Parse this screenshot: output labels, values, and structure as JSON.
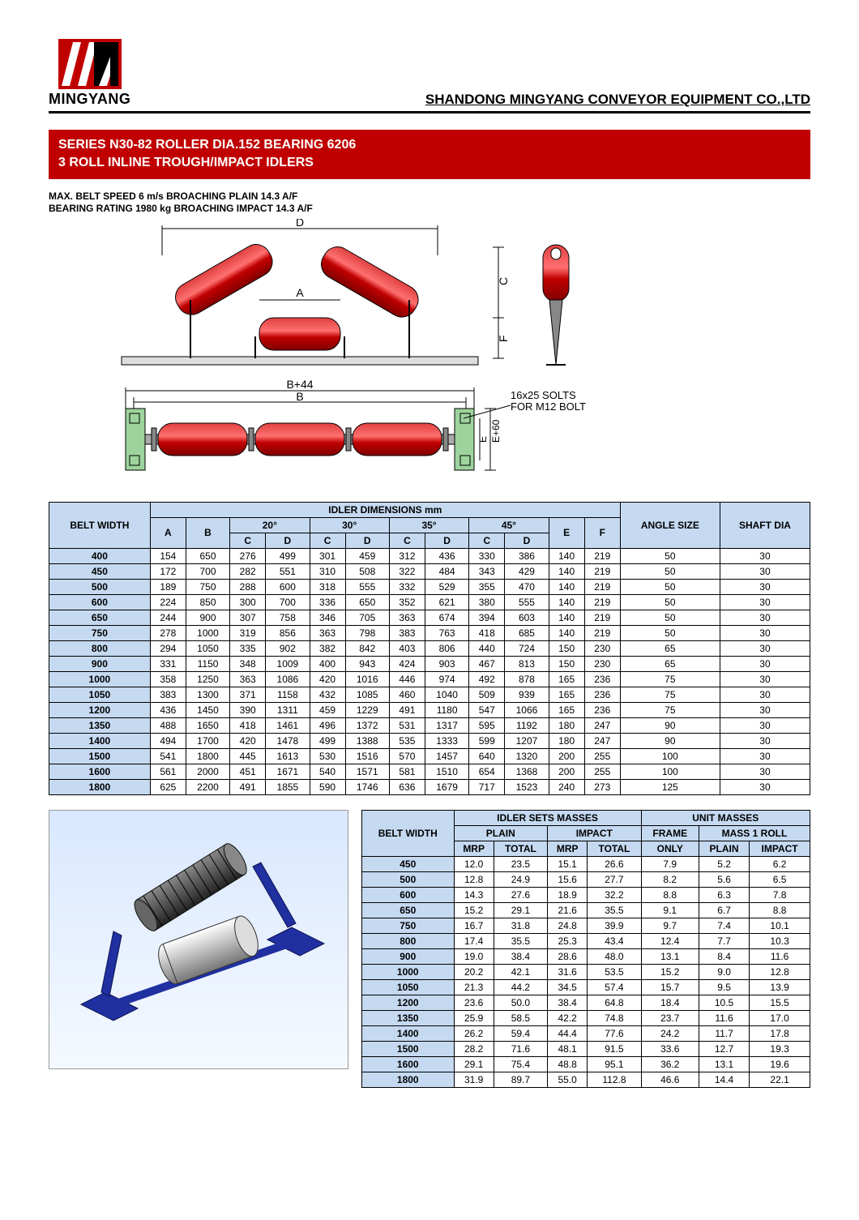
{
  "brand": "MINGYANG",
  "company": "SHANDONG MINGYANG CONVEYOR EQUIPMENT CO.,LTD",
  "title_line1": "SERIES N30-82 ROLLER DIA.152 BEARING 6206",
  "title_line2": "3 ROLL INLINE TROUGH/IMPACT IDLERS",
  "spec1": "MAX. BELT SPEED 6 m/s BROACHING PLAIN 14.3 A/F",
  "spec2": "BEARING RATING 1980 kg BROACHING IMPACT 14.3 A/F",
  "diagram": {
    "label_D": "D",
    "label_A": "A",
    "label_C": "C",
    "label_F": "F",
    "label_B44": "B+44",
    "label_B": "B",
    "label_E60": "E+60",
    "label_E": "E",
    "slot_note_1": "16x25 SOLTS",
    "slot_note_2": "FOR M12 BOLT",
    "colors": {
      "roller": "#c00000",
      "roller_light": "#e34040",
      "frame": "#000000",
      "base": "#cccccc"
    }
  },
  "dim_table": {
    "title": "IDLER DIMENSIONS mm",
    "belt": "BELT WIDTH",
    "angle": "ANGLE SIZE",
    "shaft": "SHAFT DIA",
    "cols_A": "A",
    "cols_B": "B",
    "angles": [
      "20°",
      "30°",
      "35°",
      "45°"
    ],
    "sub_C": "C",
    "sub_D": "D",
    "cols_E": "E",
    "cols_F": "F",
    "rows": [
      [
        "400",
        "154",
        "650",
        "276",
        "499",
        "301",
        "459",
        "312",
        "436",
        "330",
        "386",
        "140",
        "219",
        "50",
        "30"
      ],
      [
        "450",
        "172",
        "700",
        "282",
        "551",
        "310",
        "508",
        "322",
        "484",
        "343",
        "429",
        "140",
        "219",
        "50",
        "30"
      ],
      [
        "500",
        "189",
        "750",
        "288",
        "600",
        "318",
        "555",
        "332",
        "529",
        "355",
        "470",
        "140",
        "219",
        "50",
        "30"
      ],
      [
        "600",
        "224",
        "850",
        "300",
        "700",
        "336",
        "650",
        "352",
        "621",
        "380",
        "555",
        "140",
        "219",
        "50",
        "30"
      ],
      [
        "650",
        "244",
        "900",
        "307",
        "758",
        "346",
        "705",
        "363",
        "674",
        "394",
        "603",
        "140",
        "219",
        "50",
        "30"
      ],
      [
        "750",
        "278",
        "1000",
        "319",
        "856",
        "363",
        "798",
        "383",
        "763",
        "418",
        "685",
        "140",
        "219",
        "50",
        "30"
      ],
      [
        "800",
        "294",
        "1050",
        "335",
        "902",
        "382",
        "842",
        "403",
        "806",
        "440",
        "724",
        "150",
        "230",
        "65",
        "30"
      ],
      [
        "900",
        "331",
        "1150",
        "348",
        "1009",
        "400",
        "943",
        "424",
        "903",
        "467",
        "813",
        "150",
        "230",
        "65",
        "30"
      ],
      [
        "1000",
        "358",
        "1250",
        "363",
        "1086",
        "420",
        "1016",
        "446",
        "974",
        "492",
        "878",
        "165",
        "236",
        "75",
        "30"
      ],
      [
        "1050",
        "383",
        "1300",
        "371",
        "1158",
        "432",
        "1085",
        "460",
        "1040",
        "509",
        "939",
        "165",
        "236",
        "75",
        "30"
      ],
      [
        "1200",
        "436",
        "1450",
        "390",
        "1311",
        "459",
        "1229",
        "491",
        "1180",
        "547",
        "1066",
        "165",
        "236",
        "75",
        "30"
      ],
      [
        "1350",
        "488",
        "1650",
        "418",
        "1461",
        "496",
        "1372",
        "531",
        "1317",
        "595",
        "1192",
        "180",
        "247",
        "90",
        "30"
      ],
      [
        "1400",
        "494",
        "1700",
        "420",
        "1478",
        "499",
        "1388",
        "535",
        "1333",
        "599",
        "1207",
        "180",
        "247",
        "90",
        "30"
      ],
      [
        "1500",
        "541",
        "1800",
        "445",
        "1613",
        "530",
        "1516",
        "570",
        "1457",
        "640",
        "1320",
        "200",
        "255",
        "100",
        "30"
      ],
      [
        "1600",
        "561",
        "2000",
        "451",
        "1671",
        "540",
        "1571",
        "581",
        "1510",
        "654",
        "1368",
        "200",
        "255",
        "100",
        "30"
      ],
      [
        "1800",
        "625",
        "2200",
        "491",
        "1855",
        "590",
        "1746",
        "636",
        "1679",
        "717",
        "1523",
        "240",
        "273",
        "125",
        "30"
      ]
    ]
  },
  "mass_table": {
    "belt": "BELT WIDTH",
    "h1": "IDLER SETS MASSES",
    "h2": "UNIT MASSES",
    "plain": "PLAIN",
    "impact": "IMPACT",
    "frame": "FRAME",
    "m1r": "MASS 1 ROLL",
    "mrp": "MRP",
    "total": "TOTAL",
    "only": "ONLY",
    "pl": "PLAIN",
    "imp": "IMPACT",
    "rows": [
      [
        "450",
        "12.0",
        "23.5",
        "15.1",
        "26.6",
        "7.9",
        "5.2",
        "6.2"
      ],
      [
        "500",
        "12.8",
        "24.9",
        "15.6",
        "27.7",
        "8.2",
        "5.6",
        "6.5"
      ],
      [
        "600",
        "14.3",
        "27.6",
        "18.9",
        "32.2",
        "8.8",
        "6.3",
        "7.8"
      ],
      [
        "650",
        "15.2",
        "29.1",
        "21.6",
        "35.5",
        "9.1",
        "6.7",
        "8.8"
      ],
      [
        "750",
        "16.7",
        "31.8",
        "24.8",
        "39.9",
        "9.7",
        "7.4",
        "10.1"
      ],
      [
        "800",
        "17.4",
        "35.5",
        "25.3",
        "43.4",
        "12.4",
        "7.7",
        "10.3"
      ],
      [
        "900",
        "19.0",
        "38.4",
        "28.6",
        "48.0",
        "13.1",
        "8.4",
        "11.6"
      ],
      [
        "1000",
        "20.2",
        "42.1",
        "31.6",
        "53.5",
        "15.2",
        "9.0",
        "12.8"
      ],
      [
        "1050",
        "21.3",
        "44.2",
        "34.5",
        "57.4",
        "15.7",
        "9.5",
        "13.9"
      ],
      [
        "1200",
        "23.6",
        "50.0",
        "38.4",
        "64.8",
        "18.4",
        "10.5",
        "15.5"
      ],
      [
        "1350",
        "25.9",
        "58.5",
        "42.2",
        "74.8",
        "23.7",
        "11.6",
        "17.0"
      ],
      [
        "1400",
        "26.2",
        "59.4",
        "44.4",
        "77.6",
        "24.2",
        "11.7",
        "17.8"
      ],
      [
        "1500",
        "28.2",
        "71.6",
        "48.1",
        "91.5",
        "33.6",
        "12.7",
        "19.3"
      ],
      [
        "1600",
        "29.1",
        "75.4",
        "48.8",
        "95.1",
        "36.2",
        "13.1",
        "19.6"
      ],
      [
        "1800",
        "31.9",
        "89.7",
        "55.0",
        "112.8",
        "46.6",
        "14.4",
        "22.1"
      ]
    ]
  }
}
